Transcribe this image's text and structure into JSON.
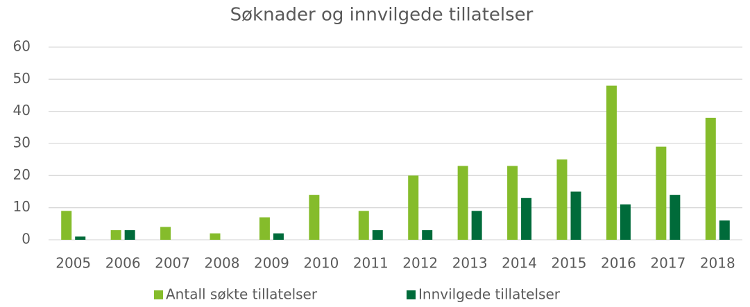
{
  "chart_data": {
    "type": "bar",
    "title": "Søknader og innvilgede tillatelser",
    "categories": [
      "2005",
      "2006",
      "2007",
      "2008",
      "2009",
      "2010",
      "2011",
      "2012",
      "2013",
      "2014",
      "2015",
      "2016",
      "2017",
      "2018"
    ],
    "series": [
      {
        "name": "Antall søkte tillatelser",
        "color": "#85bc2b",
        "values": [
          9,
          3,
          4,
          2,
          7,
          14,
          9,
          20,
          23,
          23,
          25,
          48,
          29,
          38
        ]
      },
      {
        "name": "Innvilgede tillatelser",
        "color": "#006b3a",
        "values": [
          1,
          3,
          0,
          0,
          2,
          0,
          3,
          3,
          9,
          13,
          15,
          11,
          14,
          6
        ]
      }
    ],
    "ylim": [
      0,
      60
    ],
    "yticks": [
      0,
      10,
      20,
      30,
      40,
      50,
      60
    ],
    "grid": true,
    "legend": "bottom"
  }
}
